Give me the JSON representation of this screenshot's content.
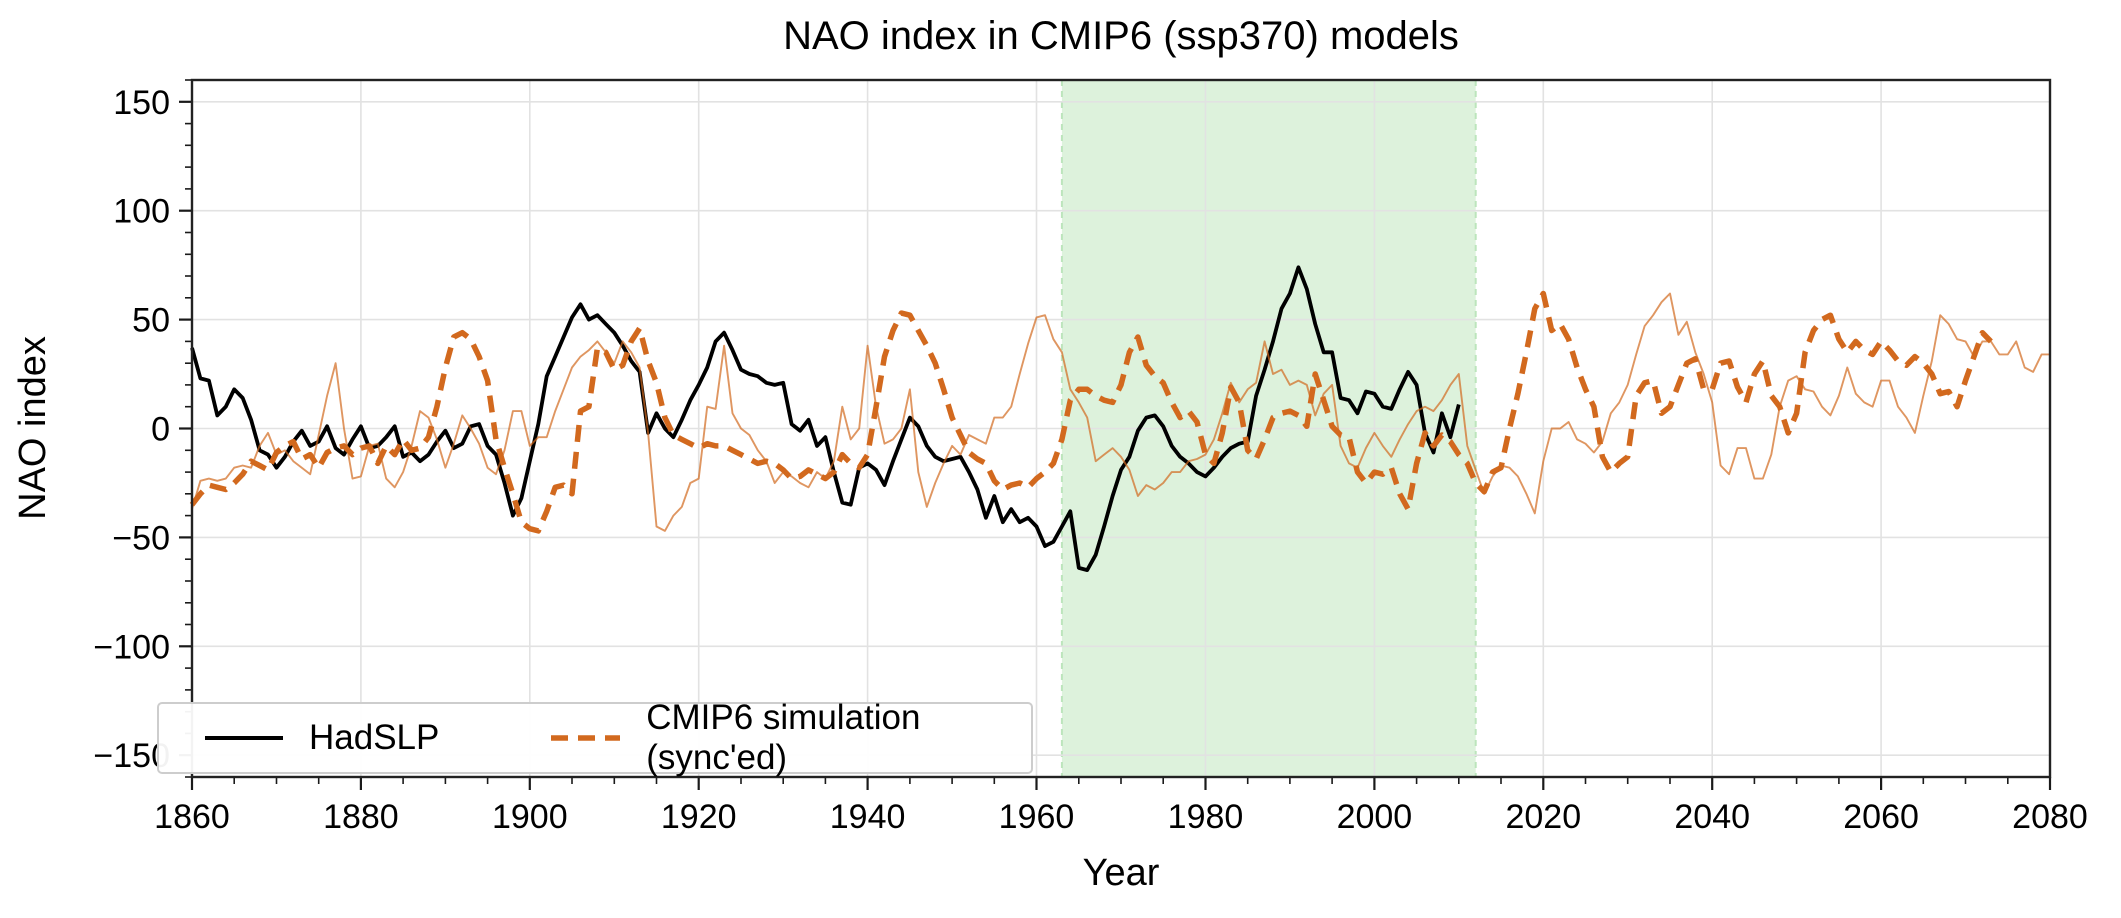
{
  "page": {
    "background": "#ffffff"
  },
  "chart": {
    "title": "NAO index in CMIP6 (ssp370) models",
    "xlabel": "Year",
    "ylabel": "NAO index",
    "legend": [
      {
        "label": "HadSLP"
      },
      {
        "label": "CMIP6 simulation (sync'ed)"
      }
    ]
  },
  "chart_data": {
    "type": "line",
    "title": "NAO index in CMIP6 (ssp370) models",
    "xlabel": "Year",
    "ylabel": "NAO index",
    "xlim": [
      1860,
      2080
    ],
    "ylim": [
      -160,
      160
    ],
    "xticks": [
      1860,
      1880,
      1900,
      1920,
      1940,
      1960,
      1980,
      2000,
      2020,
      2040,
      2060,
      2080
    ],
    "x_minor_step": 5,
    "yticks": [
      -150,
      -100,
      -50,
      0,
      50,
      100,
      150
    ],
    "ytick_labels": [
      "−150",
      "−100",
      "−50",
      "0",
      "50",
      "100",
      "150"
    ],
    "y_minor_step": 10,
    "grid": true,
    "grid_color": "#e2e2e2",
    "spine_color": "#222222",
    "legend_position": "lower left",
    "highlight_band": {
      "x_start": 1963,
      "x_end": 2012,
      "fill_color": "#ddf2dc",
      "edge_color": "#bce5bc",
      "edge_style": "dashed"
    },
    "series": [
      {
        "name": "HadSLP",
        "in_legend": true,
        "color": "#000000",
        "line_style": "solid",
        "line_width": 3.8,
        "opacity": 1,
        "x_start": 1860,
        "x_step": 1,
        "values": [
          37,
          23,
          22,
          6,
          10,
          18,
          14,
          4,
          -10,
          -12,
          -18,
          -13,
          -6,
          -1,
          -8,
          -6,
          1,
          -9,
          -12,
          -5,
          1,
          -9,
          -8,
          -4,
          1,
          -13,
          -11,
          -15,
          -12,
          -6,
          -1,
          -9,
          -7,
          1,
          2,
          -8,
          -12,
          -25,
          -40,
          -32,
          -15,
          2,
          24,
          33,
          42,
          51,
          57,
          50,
          52,
          48,
          44,
          38,
          31,
          26,
          -2,
          7,
          0,
          -4,
          4,
          13,
          20,
          28,
          40,
          44,
          36,
          27,
          25,
          24,
          21,
          20,
          21,
          2,
          -1,
          4,
          -8,
          -4,
          -20,
          -34,
          -35,
          -18,
          -16,
          -19,
          -26,
          -15,
          -5,
          5,
          1,
          -8,
          -13,
          -15,
          -14,
          -13,
          -20,
          -28,
          -41,
          -31,
          -43,
          -37,
          -43,
          -41,
          -45,
          -54,
          -52,
          -45,
          -38,
          -64,
          -65,
          -58,
          -45,
          -31,
          -19,
          -13,
          -1,
          5,
          6,
          1,
          -8,
          -13,
          -16,
          -20,
          -22,
          -18,
          -13,
          -9,
          -7,
          -6,
          15,
          27,
          40,
          55,
          62,
          74,
          64,
          48,
          35,
          35,
          14,
          13,
          7,
          17,
          16,
          10,
          9,
          18,
          26,
          20,
          -2,
          -11,
          7,
          -4,
          11
        ]
      },
      {
        "name": "CMIP6 simulation (sync'ed)",
        "in_legend": true,
        "color": "#d2691e",
        "line_style": "dashed",
        "dash_pattern": "17 10",
        "line_width": 5.5,
        "opacity": 1,
        "x_start": 1860,
        "x_step": 1,
        "values": [
          -35,
          -30,
          -26,
          -27,
          -28,
          -25,
          -21,
          -15,
          -17,
          -19,
          -11,
          -8,
          -6,
          -14,
          -12,
          -18,
          -11,
          -9,
          -8,
          -12,
          -9,
          -8,
          -16,
          -8,
          -12,
          -5,
          -10,
          -9,
          -4,
          10,
          28,
          42,
          44,
          41,
          33,
          22,
          -5,
          -18,
          -30,
          -43,
          -46,
          -47,
          -38,
          -27,
          -26,
          -30,
          8,
          10,
          37,
          35,
          27,
          29,
          40,
          46,
          31,
          21,
          5,
          -3,
          -5,
          -7,
          -9,
          -7,
          -8,
          -8,
          -10,
          -12,
          -14,
          -16,
          -15,
          -16,
          -19,
          -23,
          -22,
          -19,
          -21,
          -23,
          -20,
          -12,
          -16,
          -18,
          -12,
          10,
          33,
          45,
          53,
          52,
          45,
          38,
          30,
          18,
          5,
          -3,
          -11,
          -14,
          -16,
          -24,
          -28,
          -26,
          -25,
          -27,
          -23,
          -20,
          -16,
          -5,
          13,
          18,
          18,
          15,
          13,
          12,
          20,
          35,
          42,
          29,
          24,
          21,
          12,
          5,
          8,
          3,
          -12,
          -16,
          -2,
          19,
          12,
          -10,
          -14,
          -5,
          5,
          7,
          8,
          6,
          1,
          25,
          13,
          1,
          -3,
          -4,
          -20,
          -25,
          -20,
          -21,
          -18,
          -30,
          -37,
          -16,
          -2,
          -8,
          -3,
          -6,
          -12,
          -16,
          -25,
          -29,
          -20,
          -18,
          0,
          16,
          35,
          55,
          62,
          45,
          48,
          41,
          28,
          18,
          10,
          -13,
          -20,
          -16,
          -13,
          15,
          21,
          22,
          7,
          10,
          20,
          30,
          32,
          18,
          18,
          30,
          31,
          19,
          12,
          25,
          31,
          15,
          10,
          -2,
          7,
          35,
          45,
          50,
          52,
          41,
          35,
          40,
          36,
          34,
          40,
          36,
          31,
          29,
          33,
          30,
          25,
          16,
          17,
          10,
          22,
          33,
          44,
          40
        ]
      },
      {
        "name": "",
        "in_legend": false,
        "color": "#d2691e",
        "line_style": "solid",
        "line_width": 1.9,
        "opacity": 0.7,
        "x_start": 1860,
        "x_step": 1,
        "values": [
          -37,
          -24,
          -23,
          -24,
          -23,
          -18,
          -17,
          -18,
          -8,
          -2,
          -12,
          -10,
          -15,
          -18,
          -21,
          -3,
          15,
          30,
          0,
          -23,
          -22,
          -8,
          -7,
          -23,
          -27,
          -20,
          -8,
          8,
          5,
          -5,
          -18,
          -7,
          6,
          0,
          -7,
          -18,
          -21,
          -10,
          8,
          8,
          -8,
          -4,
          -4,
          8,
          18,
          28,
          33,
          36,
          40,
          35,
          30,
          40,
          35,
          28,
          -2,
          -45,
          -47,
          -40,
          -36,
          -25,
          -23,
          10,
          9,
          38,
          7,
          0,
          -3,
          -10,
          -15,
          -25,
          -20,
          -22,
          -25,
          -27,
          -20,
          -23,
          -15,
          10,
          -5,
          0,
          38,
          10,
          -7,
          -5,
          0,
          18,
          -20,
          -36,
          -25,
          -16,
          -8,
          -12,
          -3,
          -5,
          -7,
          5,
          5,
          10,
          25,
          39,
          51,
          52,
          41,
          35,
          18,
          12,
          5,
          -15,
          -12,
          -9,
          -13,
          -19,
          -31,
          -26,
          -28,
          -25,
          -20,
          -20,
          -15,
          -14,
          -12,
          -5,
          7,
          21,
          12,
          18,
          21,
          40,
          25,
          27,
          20,
          22,
          20,
          6,
          16,
          20,
          -8,
          -16,
          -18,
          -9,
          -2,
          -8,
          -13,
          -5,
          2,
          8,
          10,
          8,
          13,
          20,
          25,
          -8,
          -19,
          -30,
          -22,
          -17,
          -18,
          -22,
          -30,
          -39,
          -15,
          0,
          0,
          3,
          -5,
          -7,
          -11,
          -6,
          7,
          12,
          20,
          34,
          47,
          52,
          58,
          62,
          43,
          49,
          35,
          25,
          12,
          -17,
          -21,
          -9,
          -9,
          -23,
          -23,
          -12,
          10,
          22,
          24,
          18,
          17,
          10,
          6,
          15,
          28,
          16,
          12,
          10,
          22,
          22,
          10,
          5,
          -2,
          15,
          31,
          52,
          48,
          41,
          40,
          33,
          40,
          40,
          34,
          34,
          40,
          28,
          26,
          34,
          34
        ]
      }
    ]
  }
}
